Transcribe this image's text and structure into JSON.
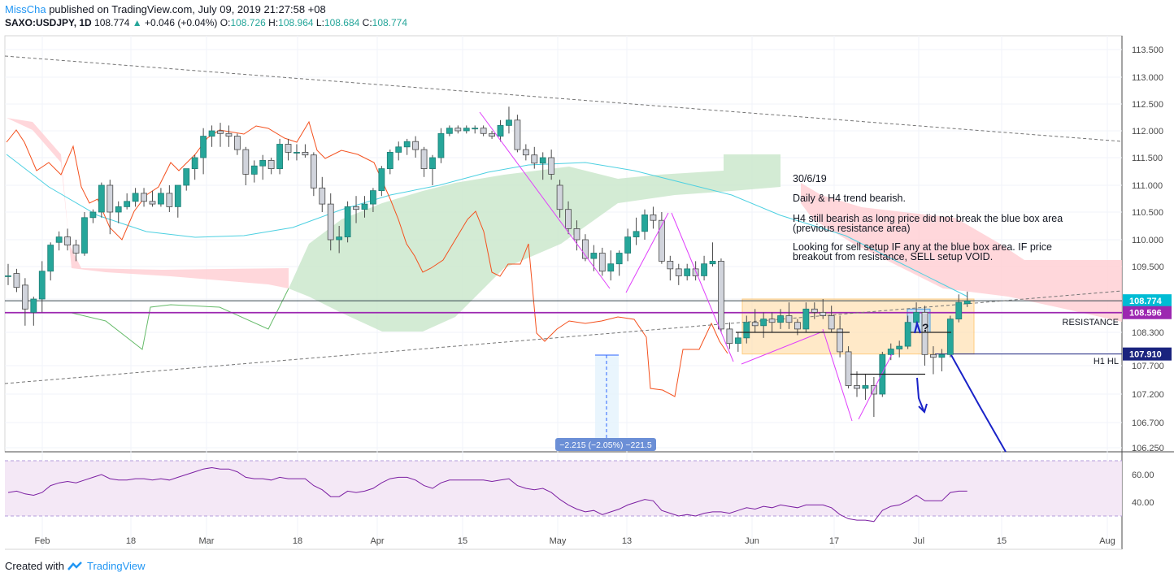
{
  "header": {
    "author": "MissCha",
    "published": "published on TradingView.com, July 09, 2019 21:27:58 +08",
    "symbol": "SAXO:USDJPY, 1D",
    "last": "108.774",
    "change": "+0.046 (+0.04%)",
    "o_label": "O:",
    "o": "108.726",
    "h_label": "H:",
    "h": "108.964",
    "l_label": "L:",
    "l": "108.684",
    "c_label": "C:",
    "c": "108.774"
  },
  "footer": {
    "created_with": "Created with",
    "brand": "TradingView"
  },
  "annotations": {
    "date": "30/6/19",
    "line1": "Daily & H4 trend bearish.",
    "line2a": "H4 still bearish as long price did not break the blue box area",
    "line2b": "(previous resistance area)",
    "line3a": "Looking for sell setup IF any at the blue box area. IF price",
    "line3b": "breakout from resistance, SELL setup VOID.",
    "resistance": "RESISTANCE",
    "h1hl": "H1 HL",
    "measure": "−2.215 (−2.05%) −221.5",
    "question": "?"
  },
  "price_tags": [
    {
      "value": "108.774",
      "color": "#00bcd4"
    },
    {
      "value": "108.596",
      "color": "#9c27b0"
    },
    {
      "value": "107.910",
      "color": "#1a237e"
    }
  ],
  "colors": {
    "up": "#26a69a",
    "down": "#d1d4dc",
    "cloud_bull": "#c8e6c9",
    "cloud_bear": "#ffcdd2",
    "baseline": "#4dd0e1",
    "lagging": "#f4511e",
    "rsi": "#7b1fa2",
    "box": "#ffe0b2",
    "magenta": "#e040fb"
  },
  "chart_data": {
    "type": "candlestick",
    "symbol": "SAXO:USDJPY",
    "timeframe": "1D",
    "y_ticks": [
      113.5,
      113.0,
      112.5,
      112.0,
      111.5,
      111.0,
      110.5,
      110.0,
      109.5,
      108.8,
      108.3,
      107.7,
      107.2,
      106.7,
      106.25
    ],
    "y_tick_labels": [
      "113.500",
      "113.000",
      "112.500",
      "112.000",
      "111.500",
      "111.000",
      "110.500",
      "110.000",
      "109.500",
      "108.800",
      "108.300",
      "107.700",
      "107.200",
      "106.700",
      "106.250"
    ],
    "ylim": [
      106.25,
      113.7
    ],
    "x_ticks": [
      "Feb",
      "18",
      "Mar",
      "18",
      "Apr",
      "15",
      "May",
      "13",
      "Jun",
      "17",
      "Jul",
      "15",
      "Aug"
    ],
    "resistance_level": 108.596,
    "h1_hl_level": 107.91,
    "last_price": 108.774,
    "candles": [
      [
        109.3,
        109.55,
        109.1,
        109.3
      ],
      [
        109.35,
        109.45,
        108.95,
        109.05
      ],
      [
        109.1,
        109.25,
        108.4,
        108.65
      ],
      [
        108.6,
        108.85,
        108.4,
        108.8
      ],
      [
        108.8,
        109.6,
        108.6,
        109.4
      ],
      [
        109.4,
        109.95,
        109.2,
        109.9
      ],
      [
        109.95,
        110.15,
        109.8,
        110.05
      ],
      [
        110.05,
        110.2,
        109.8,
        109.9
      ],
      [
        109.9,
        110.0,
        109.6,
        109.75
      ],
      [
        109.75,
        110.5,
        109.7,
        110.4
      ],
      [
        110.4,
        110.55,
        110.3,
        110.5
      ],
      [
        110.5,
        111.05,
        110.4,
        111.0
      ],
      [
        111.0,
        111.1,
        110.1,
        110.5
      ],
      [
        110.5,
        110.7,
        110.3,
        110.6
      ],
      [
        110.6,
        110.85,
        110.55,
        110.7
      ],
      [
        110.7,
        110.95,
        110.6,
        110.85
      ],
      [
        110.85,
        110.95,
        110.6,
        110.7
      ],
      [
        110.7,
        110.9,
        110.6,
        110.65
      ],
      [
        110.65,
        110.95,
        110.6,
        110.85
      ],
      [
        110.85,
        111.0,
        110.5,
        110.6
      ],
      [
        110.6,
        111.0,
        110.4,
        111.0
      ],
      [
        111.0,
        111.3,
        110.9,
        111.3
      ],
      [
        111.3,
        111.55,
        111.1,
        111.5
      ],
      [
        111.5,
        112.05,
        111.2,
        111.9
      ],
      [
        111.9,
        112.1,
        111.7,
        112.0
      ],
      [
        112.0,
        112.15,
        111.7,
        111.95
      ],
      [
        111.95,
        112.1,
        111.7,
        111.9
      ],
      [
        111.9,
        111.95,
        111.55,
        111.65
      ],
      [
        111.65,
        111.7,
        111.0,
        111.2
      ],
      [
        111.2,
        111.45,
        111.05,
        111.35
      ],
      [
        111.35,
        111.55,
        111.1,
        111.45
      ],
      [
        111.45,
        111.5,
        111.2,
        111.3
      ],
      [
        111.3,
        111.85,
        111.2,
        111.75
      ],
      [
        111.75,
        111.85,
        111.45,
        111.6
      ],
      [
        111.6,
        111.75,
        111.45,
        111.6
      ],
      [
        111.6,
        111.75,
        111.5,
        111.55
      ],
      [
        111.55,
        111.6,
        110.8,
        110.95
      ],
      [
        110.95,
        111.15,
        110.5,
        110.65
      ],
      [
        110.65,
        110.85,
        109.8,
        110.0
      ],
      [
        110.0,
        110.25,
        109.75,
        110.05
      ],
      [
        110.05,
        110.7,
        109.95,
        110.6
      ],
      [
        110.6,
        110.8,
        110.3,
        110.55
      ],
      [
        110.55,
        110.8,
        110.4,
        110.65
      ],
      [
        110.65,
        110.95,
        110.5,
        110.9
      ],
      [
        110.9,
        111.35,
        110.8,
        111.3
      ],
      [
        111.3,
        111.65,
        111.2,
        111.6
      ],
      [
        111.6,
        111.8,
        111.45,
        111.7
      ],
      [
        111.7,
        111.85,
        111.55,
        111.8
      ],
      [
        111.8,
        111.9,
        111.5,
        111.65
      ],
      [
        111.65,
        111.7,
        111.15,
        111.3
      ],
      [
        111.3,
        111.55,
        111.0,
        111.5
      ],
      [
        111.5,
        112.05,
        111.4,
        111.95
      ],
      [
        111.95,
        112.1,
        111.9,
        112.05
      ],
      [
        112.05,
        112.1,
        111.95,
        112.0
      ],
      [
        112.0,
        112.1,
        111.95,
        112.05
      ],
      [
        112.05,
        112.1,
        111.95,
        112.05
      ],
      [
        112.05,
        112.1,
        111.9,
        111.95
      ],
      [
        111.95,
        112.0,
        111.85,
        111.9
      ],
      [
        111.9,
        112.2,
        111.8,
        112.1
      ],
      [
        112.1,
        112.45,
        111.95,
        112.2
      ],
      [
        112.2,
        112.3,
        111.6,
        111.65
      ],
      [
        111.65,
        111.75,
        111.45,
        111.55
      ],
      [
        111.55,
        111.7,
        111.3,
        111.4
      ],
      [
        111.4,
        111.6,
        111.1,
        111.5
      ],
      [
        111.5,
        111.65,
        111.1,
        111.2
      ],
      [
        111.0,
        111.1,
        110.4,
        110.55
      ],
      [
        110.55,
        110.7,
        110.1,
        110.2
      ],
      [
        110.2,
        110.35,
        109.8,
        110.0
      ],
      [
        110.0,
        110.1,
        109.6,
        109.65
      ],
      [
        109.65,
        109.9,
        109.4,
        109.75
      ],
      [
        109.75,
        109.85,
        109.3,
        109.4
      ],
      [
        109.4,
        109.8,
        109.2,
        109.55
      ],
      [
        109.55,
        109.8,
        109.3,
        109.75
      ],
      [
        109.75,
        110.2,
        109.6,
        110.05
      ],
      [
        110.05,
        110.4,
        109.9,
        110.15
      ],
      [
        110.15,
        110.55,
        110.0,
        110.45
      ],
      [
        110.45,
        110.6,
        110.2,
        110.35
      ],
      [
        110.35,
        110.5,
        109.55,
        109.6
      ],
      [
        109.6,
        109.7,
        109.2,
        109.45
      ],
      [
        109.45,
        109.55,
        109.1,
        109.3
      ],
      [
        109.3,
        109.55,
        109.2,
        109.45
      ],
      [
        109.45,
        109.6,
        109.2,
        109.3
      ],
      [
        109.3,
        109.7,
        109.2,
        109.55
      ],
      [
        109.55,
        109.95,
        109.5,
        109.6
      ],
      [
        109.6,
        109.65,
        108.3,
        108.35
      ],
      [
        108.35,
        108.45,
        108.0,
        108.1
      ],
      [
        108.1,
        108.3,
        107.95,
        108.2
      ],
      [
        108.2,
        108.55,
        108.1,
        108.45
      ],
      [
        108.45,
        108.65,
        108.3,
        108.4
      ],
      [
        108.4,
        108.6,
        108.2,
        108.5
      ],
      [
        108.5,
        108.6,
        108.3,
        108.45
      ],
      [
        108.45,
        108.65,
        108.35,
        108.55
      ],
      [
        108.55,
        108.75,
        108.35,
        108.45
      ],
      [
        108.45,
        108.5,
        108.25,
        108.35
      ],
      [
        108.35,
        108.75,
        108.3,
        108.65
      ],
      [
        108.65,
        108.75,
        108.5,
        108.6
      ],
      [
        108.6,
        108.8,
        108.5,
        108.55
      ],
      [
        108.55,
        108.7,
        108.3,
        108.35
      ],
      [
        108.35,
        108.55,
        107.85,
        107.95
      ],
      [
        107.95,
        108.05,
        107.3,
        107.35
      ],
      [
        107.35,
        107.6,
        107.15,
        107.3
      ],
      [
        107.3,
        107.55,
        107.1,
        107.35
      ],
      [
        107.35,
        107.5,
        106.8,
        107.2
      ],
      [
        107.2,
        107.95,
        107.15,
        107.9
      ],
      [
        107.9,
        108.1,
        107.8,
        108.0
      ],
      [
        108.0,
        108.15,
        107.85,
        108.05
      ],
      [
        108.05,
        108.55,
        108.0,
        108.45
      ],
      [
        108.45,
        108.75,
        108.35,
        108.6
      ],
      [
        108.6,
        108.7,
        107.7,
        107.9
      ],
      [
        107.9,
        108.05,
        107.55,
        107.85
      ],
      [
        107.85,
        108.0,
        107.6,
        107.9
      ],
      [
        107.9,
        108.55,
        107.85,
        108.5
      ],
      [
        108.5,
        108.9,
        108.45,
        108.75
      ],
      [
        108.73,
        108.96,
        108.68,
        108.77
      ]
    ],
    "rsi": {
      "ylim": [
        20,
        75
      ],
      "levels": [
        60,
        40
      ],
      "ticks": [
        "60.00",
        "40.00"
      ],
      "band": [
        30,
        70
      ],
      "values": [
        47,
        48,
        46,
        45,
        47,
        52,
        54,
        55,
        54,
        56,
        58,
        60,
        57,
        56,
        56,
        57,
        57,
        56,
        57,
        56,
        58,
        60,
        62,
        64,
        65,
        64,
        64,
        62,
        58,
        57,
        57,
        56,
        58,
        57,
        57,
        57,
        52,
        49,
        44,
        44,
        48,
        47,
        48,
        50,
        54,
        57,
        58,
        58,
        56,
        52,
        50,
        54,
        56,
        56,
        56,
        56,
        56,
        55,
        56,
        57,
        52,
        50,
        49,
        50,
        47,
        42,
        38,
        35,
        33,
        34,
        31,
        33,
        35,
        38,
        40,
        42,
        41,
        34,
        32,
        30,
        31,
        30,
        32,
        33,
        33,
        32,
        34,
        36,
        35,
        37,
        36,
        38,
        37,
        36,
        38,
        38,
        38,
        36,
        31,
        28,
        27,
        27,
        26,
        34,
        37,
        38,
        41,
        45,
        41,
        41,
        41,
        47,
        48,
        48
      ]
    },
    "x_axis_positions_note": "one candle per trading day from late Jan to Jul 09 2019"
  }
}
